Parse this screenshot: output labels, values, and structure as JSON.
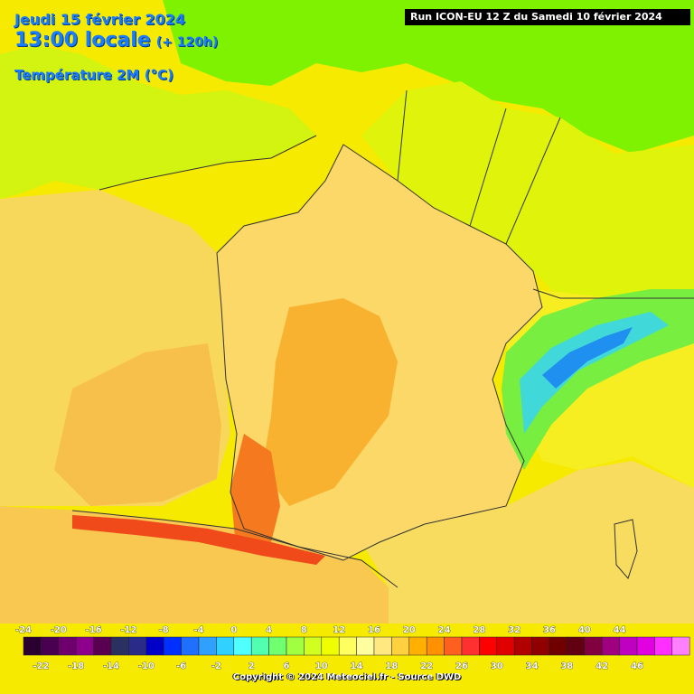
{
  "header": {
    "date": "Jeudi 15 février 2024",
    "time": "13:00 locale",
    "lead": "(+ 120h)",
    "parameter": "Température 2M (°C)"
  },
  "run_banner": "Run ICON-EU 12 Z du Samedi 10 février 2024",
  "copyright": "Copyright © 2024 Meteociel.fr - Source DWD",
  "legend": {
    "top_labels": [
      "-24",
      "-20",
      "-16",
      "-12",
      "-8",
      "-4",
      "0",
      "4",
      "8",
      "12",
      "16",
      "20",
      "24",
      "28",
      "32",
      "36",
      "40",
      "44"
    ],
    "bottom_labels": [
      "-22",
      "-18",
      "-14",
      "-10",
      "-6",
      "-2",
      "2",
      "6",
      "10",
      "14",
      "18",
      "22",
      "26",
      "30",
      "34",
      "38",
      "42",
      "46"
    ],
    "colors": [
      "#2a0030",
      "#4a0050",
      "#6e006e",
      "#8c008c",
      "#5a0050",
      "#2a3060",
      "#2a2a88",
      "#0000c8",
      "#0030ff",
      "#2070ff",
      "#30a0ff",
      "#30d0ff",
      "#50ffff",
      "#50ffb0",
      "#70ff70",
      "#a0ff40",
      "#d0ff20",
      "#f0ff00",
      "#ffff60",
      "#ffffa0",
      "#ffe880",
      "#ffd040",
      "#ffb000",
      "#ff9000",
      "#ff6020",
      "#ff3030",
      "#ff0000",
      "#e00000",
      "#b00000",
      "#900000",
      "#700000",
      "#600010",
      "#800040",
      "#a00080",
      "#c000c0",
      "#e000e0",
      "#ff30ff",
      "#ff80ff"
    ]
  },
  "map": {
    "colors": {
      "sea_north": "#f6ea00",
      "atlantic": "#f8d85a",
      "atlantic_warm": "#f7c04a",
      "uk_land": "#d2f410",
      "north_green": "#7ef200",
      "benelux": "#dff40a",
      "france_land": "#fbd868",
      "france_warm": "#f9b230",
      "southwest_hot": "#f57a1f",
      "pyrenees_hot": "#f04a1a",
      "spain": "#f8c850",
      "alps_green": "#78ee40",
      "alps_cyan": "#40d8d8",
      "alps_blue": "#2090f0",
      "italy": "#f6ee20",
      "med": "#f8dc60",
      "border": "#333333"
    }
  }
}
